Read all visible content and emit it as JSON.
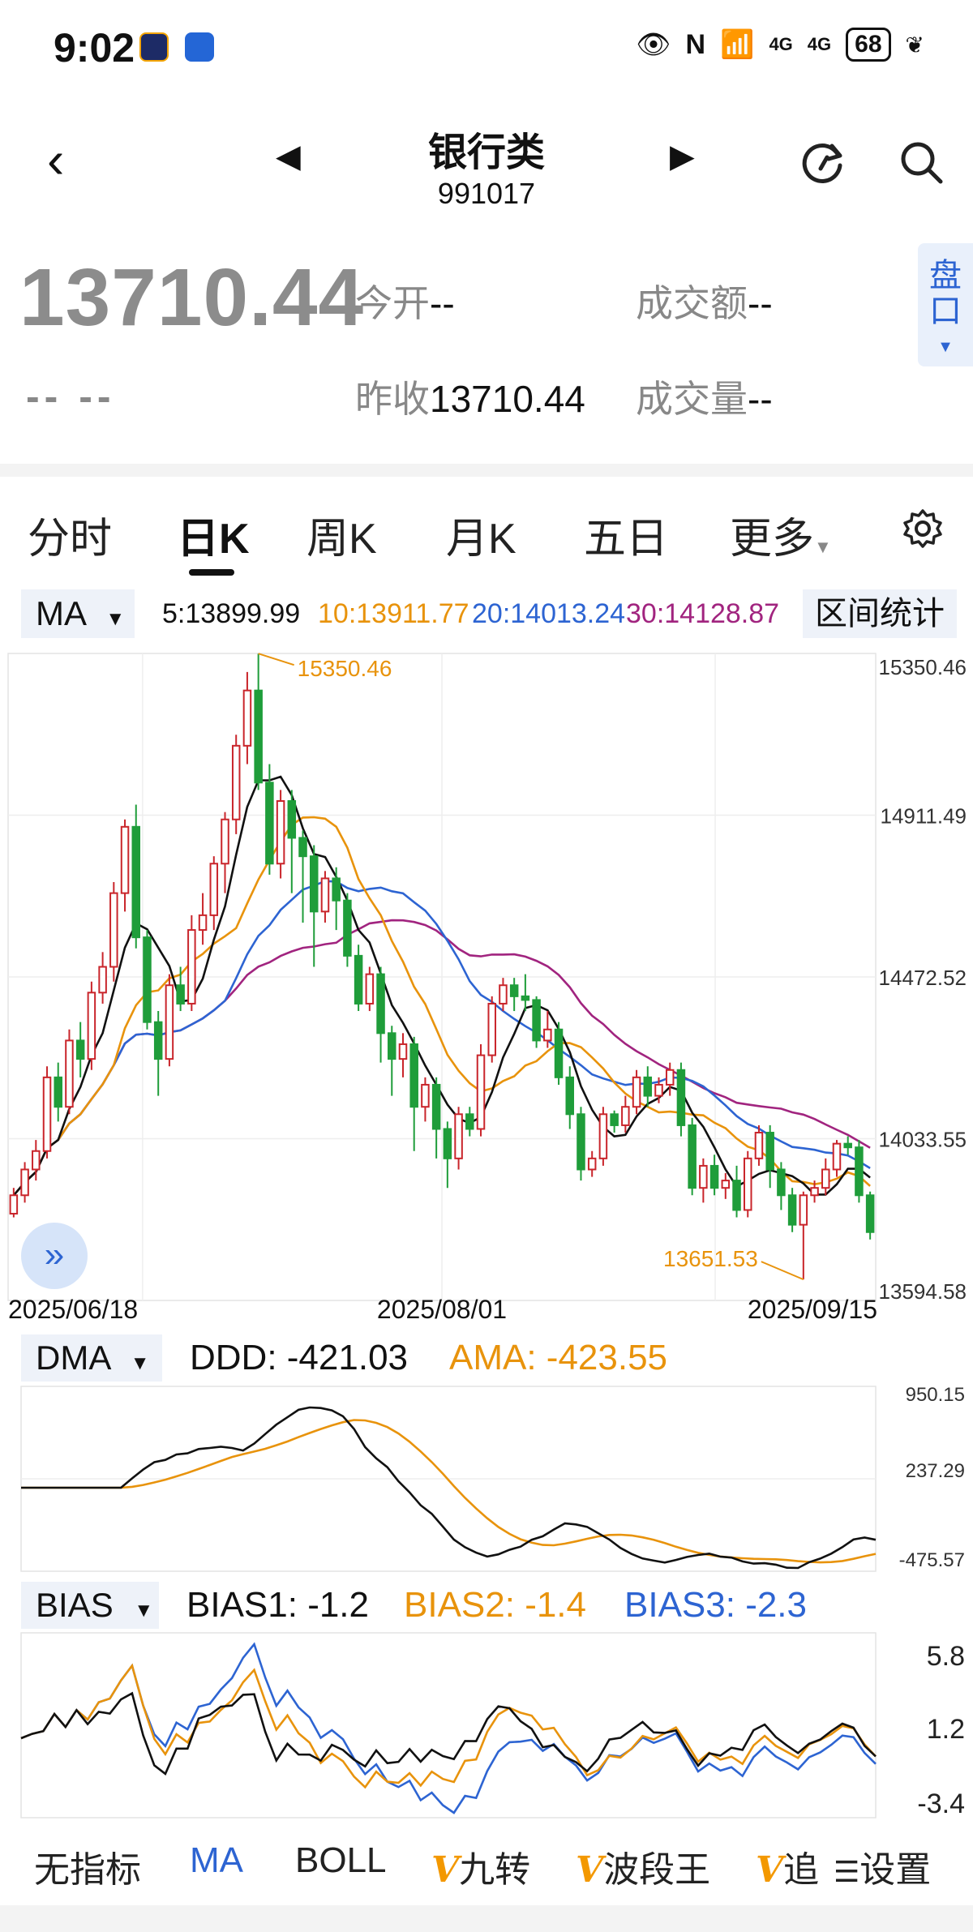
{
  "status": {
    "time": "9:02",
    "network1": "4G",
    "network2": "4G",
    "battery": "68"
  },
  "header": {
    "title": "银行类",
    "code": "991017"
  },
  "quote": {
    "price": "13710.44",
    "change": "-- --",
    "open_label": "今开",
    "open_value": "--",
    "prev_close_label": "昨收",
    "prev_close_value": "13710.44",
    "turnover_label": "成交额",
    "turnover_value": "--",
    "volume_label": "成交量",
    "volume_value": "--",
    "pankou_label": "盘口"
  },
  "tabs": [
    "分时",
    "日K",
    "周K",
    "月K",
    "五日",
    "更多"
  ],
  "ma_panel": {
    "selector": "MA",
    "ma5": "5:13899.99",
    "ma10": "10:13911.77",
    "ma20": "20:14013.24",
    "ma30": "30:14128.87",
    "range_button": "区间统计",
    "y_labels": [
      "15350.46",
      "14911.49",
      "14472.52",
      "14033.55",
      "13594.58"
    ],
    "x_labels": [
      "2025/06/18",
      "2025/08/01",
      "2025/09/15"
    ],
    "high_label": "15350.46",
    "low_label": "13651.53"
  },
  "dma_panel": {
    "selector": "DMA",
    "ddd": "DDD: -421.03",
    "ama": "AMA: -423.55",
    "y_labels": [
      "950.15",
      "237.29",
      "-475.57"
    ]
  },
  "bias_panel": {
    "selector": "BIAS",
    "bias1": "BIAS1: -1.2",
    "bias2": "BIAS2: -1.4",
    "bias3": "BIAS3: -2.3",
    "y_labels": [
      "5.8",
      "1.2",
      "-3.4"
    ]
  },
  "bottom_tabs": {
    "none": "无指标",
    "ma": "MA",
    "boll": "BOLL",
    "jiuzhuan": "九转",
    "boduan": "波段王",
    "zhui": "追",
    "settings": "设置",
    "v": "V"
  },
  "colors": {
    "up": "#c9252b",
    "down": "#1f9d3a",
    "ma5": "#111111",
    "ma10": "#e8930c",
    "ma20": "#2d64d2",
    "ma30": "#a1247f",
    "accent": "#2d64d2"
  },
  "chart_data": {
    "type": "candlestick",
    "x_range": [
      "2025/06/18",
      "2025/09/15"
    ],
    "ylim": [
      13594.58,
      15350.46
    ],
    "high": 15350.46,
    "low": 13651.53,
    "candles": [
      [
        13830,
        13880,
        13820,
        13900
      ],
      [
        13880,
        13950,
        13860,
        13970
      ],
      [
        13950,
        14000,
        13920,
        14030
      ],
      [
        14000,
        14200,
        13980,
        14230
      ],
      [
        14200,
        14120,
        14080,
        14240
      ],
      [
        14120,
        14300,
        14100,
        14330
      ],
      [
        14300,
        14250,
        14200,
        14350
      ],
      [
        14250,
        14430,
        14220,
        14460
      ],
      [
        14430,
        14500,
        14400,
        14540
      ],
      [
        14500,
        14700,
        14460,
        14730
      ],
      [
        14700,
        14880,
        14650,
        14900
      ],
      [
        14880,
        14580,
        14550,
        14940
      ],
      [
        14580,
        14350,
        14330,
        14600
      ],
      [
        14350,
        14250,
        14150,
        14380
      ],
      [
        14250,
        14450,
        14230,
        14480
      ],
      [
        14450,
        14400,
        14380,
        14500
      ],
      [
        14400,
        14600,
        14380,
        14640
      ],
      [
        14600,
        14640,
        14560,
        14700
      ],
      [
        14640,
        14780,
        14600,
        14800
      ],
      [
        14780,
        14900,
        14700,
        14920
      ],
      [
        14900,
        15100,
        14860,
        15130
      ],
      [
        15100,
        15250,
        15050,
        15300
      ],
      [
        15250,
        15000,
        14980,
        15350
      ],
      [
        15000,
        14780,
        14750,
        15050
      ],
      [
        14780,
        14950,
        14740,
        14980
      ],
      [
        14950,
        14850,
        14700,
        14980
      ],
      [
        14850,
        14800,
        14620,
        14870
      ],
      [
        14800,
        14650,
        14500,
        14830
      ],
      [
        14650,
        14740,
        14620,
        14760
      ],
      [
        14740,
        14680,
        14600,
        14770
      ],
      [
        14680,
        14530,
        14500,
        14700
      ],
      [
        14530,
        14400,
        14380,
        14560
      ],
      [
        14400,
        14480,
        14380,
        14500
      ],
      [
        14480,
        14320,
        14240,
        14500
      ],
      [
        14320,
        14250,
        14150,
        14340
      ],
      [
        14250,
        14290,
        14200,
        14320
      ],
      [
        14290,
        14120,
        14000,
        14310
      ],
      [
        14120,
        14180,
        14080,
        14200
      ],
      [
        14180,
        14060,
        13980,
        14200
      ],
      [
        14060,
        13980,
        13900,
        14080
      ],
      [
        13980,
        14100,
        13950,
        14120
      ],
      [
        14100,
        14060,
        14040,
        14120
      ],
      [
        14060,
        14260,
        14040,
        14290
      ],
      [
        14260,
        14400,
        14240,
        14420
      ],
      [
        14400,
        14450,
        14380,
        14470
      ],
      [
        14450,
        14420,
        14380,
        14470
      ],
      [
        14420,
        14410,
        14380,
        14480
      ],
      [
        14410,
        14300,
        14280,
        14420
      ],
      [
        14300,
        14330,
        14280,
        14380
      ],
      [
        14330,
        14200,
        14180,
        14350
      ],
      [
        14200,
        14100,
        14060,
        14230
      ],
      [
        14100,
        13950,
        13920,
        14120
      ],
      [
        13950,
        13980,
        13930,
        14000
      ],
      [
        13980,
        14100,
        13960,
        14120
      ],
      [
        14100,
        14070,
        14050,
        14110
      ],
      [
        14070,
        14120,
        14050,
        14150
      ],
      [
        14120,
        14200,
        14100,
        14220
      ],
      [
        14200,
        14150,
        14120,
        14230
      ],
      [
        14150,
        14180,
        14130,
        14200
      ],
      [
        14180,
        14220,
        14150,
        14240
      ],
      [
        14220,
        14070,
        14040,
        14240
      ],
      [
        14070,
        13900,
        13880,
        14090
      ],
      [
        13900,
        13960,
        13860,
        13980
      ],
      [
        13960,
        13900,
        13880,
        13990
      ],
      [
        13900,
        13920,
        13870,
        13940
      ],
      [
        13920,
        13840,
        13820,
        13960
      ],
      [
        13840,
        13980,
        13820,
        14000
      ],
      [
        13980,
        14050,
        13960,
        14070
      ],
      [
        14050,
        13950,
        13900,
        14070
      ],
      [
        13950,
        13880,
        13840,
        13970
      ],
      [
        13880,
        13800,
        13780,
        13900
      ],
      [
        13800,
        13880,
        13651.53,
        13890
      ],
      [
        13880,
        13900,
        13860,
        13920
      ],
      [
        13900,
        13950,
        13880,
        13980
      ],
      [
        13950,
        14020,
        13930,
        14030
      ],
      [
        14020,
        14010,
        13990,
        14040
      ],
      [
        14010,
        13880,
        13860,
        14030
      ],
      [
        13880,
        13780,
        13760,
        13890
      ]
    ],
    "ma5_last": 13899.99,
    "ma10_last": 13911.77,
    "ma20_last": 14013.24,
    "ma30_last": 14128.87,
    "dma": {
      "ylim": [
        -475.57,
        950.15
      ],
      "ddd_last": -421.03,
      "ama_last": -423.55
    },
    "bias": {
      "ylim": [
        -3.4,
        5.8
      ],
      "bias1_last": -1.2,
      "bias2_last": -1.4,
      "bias3_last": -2.3
    }
  }
}
